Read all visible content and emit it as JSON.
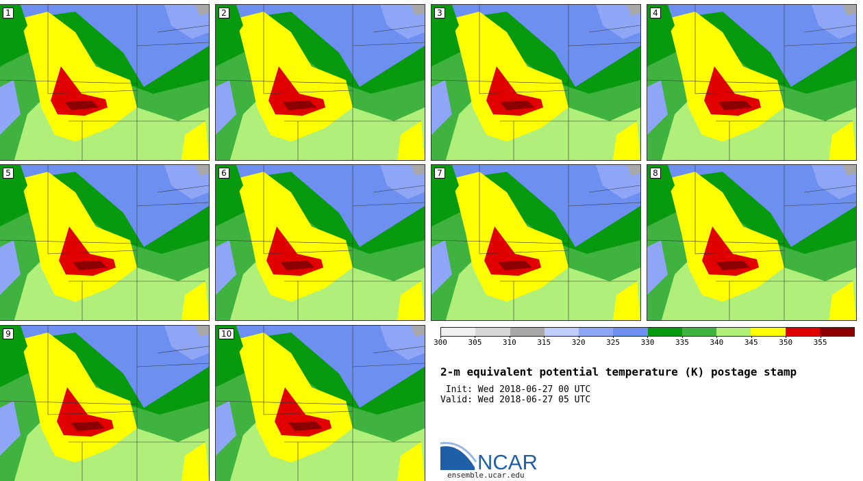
{
  "panels": [
    {
      "label": "1"
    },
    {
      "label": "2"
    },
    {
      "label": "3"
    },
    {
      "label": "4"
    },
    {
      "label": "5"
    },
    {
      "label": "6"
    },
    {
      "label": "7"
    },
    {
      "label": "8"
    },
    {
      "label": "9"
    },
    {
      "label": "10"
    }
  ],
  "colorbar": {
    "colors": [
      "#f0f0f0",
      "#d8d8d8",
      "#a8a8a8",
      "#bfcdfc",
      "#8ea6f5",
      "#6d8ff0",
      "#079a0f",
      "#3fb23f",
      "#b0f07a",
      "#ffff00",
      "#e00000",
      "#8b0000"
    ],
    "ticks": [
      "300",
      "305",
      "310",
      "315",
      "320",
      "325",
      "330",
      "335",
      "340",
      "345",
      "350",
      "355"
    ]
  },
  "title": "2-m equivalent potential temperature (K) postage stamp",
  "init": " Init: Wed 2018-06-27 00 UTC",
  "valid": "Valid: Wed 2018-06-27 05 UTC",
  "logo": {
    "text": "NCAR",
    "site": "ensemble.ucar.edu"
  },
  "palette": {
    "blue": "#6d8ff0",
    "lightblue": "#8ea6f5",
    "green": "#079a0f",
    "midgreen": "#3fb23f",
    "lightgreen": "#b0f07a",
    "yellow": "#ffff00",
    "red": "#e00000",
    "darkred": "#8b0000",
    "gray": "#a8a8a8"
  }
}
